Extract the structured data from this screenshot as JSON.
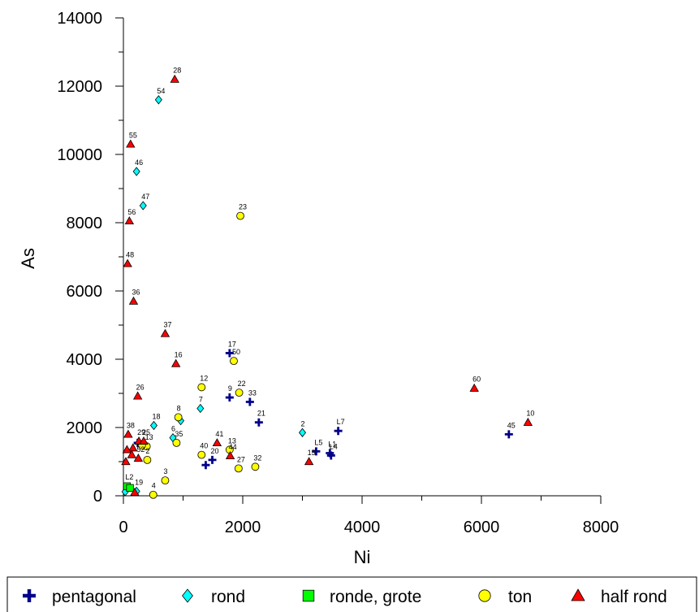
{
  "chart_data": {
    "type": "scatter",
    "title": "",
    "xlabel": "Ni",
    "ylabel": "As",
    "xlim": [
      0,
      8000
    ],
    "ylim": [
      0,
      14000
    ],
    "xticks": [
      0,
      2000,
      4000,
      6000,
      8000
    ],
    "yticks": [
      0,
      2000,
      4000,
      6000,
      8000,
      10000,
      12000,
      14000
    ],
    "x_tick_labels": [
      "0",
      "2000",
      "4000",
      "6000",
      "8000"
    ],
    "y_tick_labels": [
      "0",
      "2000",
      "4000",
      "6000",
      "8000",
      "10000",
      "12000",
      "14000"
    ],
    "grid": false,
    "legend_position": "bottom",
    "series": [
      {
        "name": "pentagonal",
        "marker": "cross",
        "color": "#00008B",
        "points": [
          {
            "label": "17",
            "x": 1780,
            "y": 4180
          },
          {
            "label": "9",
            "x": 1780,
            "y": 2880
          },
          {
            "label": "33",
            "x": 2120,
            "y": 2750
          },
          {
            "label": "21",
            "x": 2270,
            "y": 2150
          },
          {
            "label": "20",
            "x": 1490,
            "y": 1050
          },
          {
            "label": "",
            "x": 1380,
            "y": 900
          },
          {
            "label": "L5",
            "x": 3230,
            "y": 1300
          },
          {
            "label": "L1",
            "x": 3460,
            "y": 1250
          },
          {
            "label": "L4",
            "x": 3480,
            "y": 1180
          },
          {
            "label": "L7",
            "x": 3600,
            "y": 1900
          },
          {
            "label": "45",
            "x": 6460,
            "y": 1800
          },
          {
            "label": "",
            "x": 240,
            "y": 1550
          }
        ]
      },
      {
        "name": "rond",
        "marker": "diamond",
        "color": "#00FFFF",
        "points": [
          {
            "label": "54",
            "x": 590,
            "y": 11600
          },
          {
            "label": "46",
            "x": 220,
            "y": 9500
          },
          {
            "label": "47",
            "x": 330,
            "y": 8500
          },
          {
            "label": "7",
            "x": 1290,
            "y": 2560
          },
          {
            "label": "18",
            "x": 510,
            "y": 2060
          },
          {
            "label": "6",
            "x": 830,
            "y": 1700
          },
          {
            "label": "",
            "x": 960,
            "y": 2200
          },
          {
            "label": "2",
            "x": 3000,
            "y": 1850
          },
          {
            "label": "",
            "x": 30,
            "y": 120
          },
          {
            "label": "19",
            "x": 220,
            "y": 130
          }
        ]
      },
      {
        "name": "ronde, grote",
        "marker": "square",
        "color": "#00FF00",
        "points": [
          {
            "label": "L2",
            "x": 60,
            "y": 280
          },
          {
            "label": "",
            "x": 110,
            "y": 230
          }
        ]
      },
      {
        "name": "ton",
        "marker": "circle",
        "color": "#FFFF00",
        "points": [
          {
            "label": "23",
            "x": 1960,
            "y": 8200
          },
          {
            "label": "50",
            "x": 1850,
            "y": 3950
          },
          {
            "label": "22",
            "x": 1940,
            "y": 3020
          },
          {
            "label": "12",
            "x": 1310,
            "y": 3180
          },
          {
            "label": "8",
            "x": 920,
            "y": 2300
          },
          {
            "label": "35",
            "x": 890,
            "y": 1550
          },
          {
            "label": "40",
            "x": 1310,
            "y": 1200
          },
          {
            "label": "13",
            "x": 1780,
            "y": 1350
          },
          {
            "label": "27",
            "x": 1930,
            "y": 800
          },
          {
            "label": "32",
            "x": 2210,
            "y": 850
          },
          {
            "label": "3",
            "x": 700,
            "y": 450
          },
          {
            "label": "4",
            "x": 500,
            "y": 30
          },
          {
            "label": "13",
            "x": 390,
            "y": 1450
          },
          {
            "label": "2",
            "x": 400,
            "y": 1050
          },
          {
            "label": "",
            "x": 310,
            "y": 1480
          }
        ]
      },
      {
        "name": "half rond",
        "marker": "triangle",
        "color": "#FF0000",
        "points": [
          {
            "label": "28",
            "x": 860,
            "y": 12200
          },
          {
            "label": "55",
            "x": 120,
            "y": 10300
          },
          {
            "label": "56",
            "x": 100,
            "y": 8050
          },
          {
            "label": "48",
            "x": 70,
            "y": 6800
          },
          {
            "label": "36",
            "x": 170,
            "y": 5700
          },
          {
            "label": "37",
            "x": 700,
            "y": 4750
          },
          {
            "label": "16",
            "x": 880,
            "y": 3870
          },
          {
            "label": "26",
            "x": 240,
            "y": 2920
          },
          {
            "label": "41",
            "x": 1570,
            "y": 1550
          },
          {
            "label": "44",
            "x": 1790,
            "y": 1170
          },
          {
            "label": "15",
            "x": 3110,
            "y": 1000
          },
          {
            "label": "60",
            "x": 5880,
            "y": 3150
          },
          {
            "label": "10",
            "x": 6780,
            "y": 2150
          },
          {
            "label": "38",
            "x": 80,
            "y": 1800
          },
          {
            "label": "29",
            "x": 260,
            "y": 1600
          },
          {
            "label": "25",
            "x": 340,
            "y": 1600
          },
          {
            "label": "52",
            "x": 250,
            "y": 1100
          },
          {
            "label": "",
            "x": 40,
            "y": 1000
          },
          {
            "label": "",
            "x": 160,
            "y": 1400
          },
          {
            "label": "",
            "x": 60,
            "y": 1350
          },
          {
            "label": "",
            "x": 140,
            "y": 1200
          },
          {
            "label": "",
            "x": 190,
            "y": 100
          }
        ]
      }
    ]
  },
  "legend": {
    "items": [
      {
        "label": "pentagonal",
        "marker": "cross",
        "color": "#00008B"
      },
      {
        "label": "rond",
        "marker": "diamond",
        "color": "#00FFFF"
      },
      {
        "label": "ronde, grote",
        "marker": "square",
        "color": "#00FF00"
      },
      {
        "label": "ton",
        "marker": "circle",
        "color": "#FFFF00"
      },
      {
        "label": "half rond",
        "marker": "triangle",
        "color": "#FF0000"
      }
    ]
  }
}
